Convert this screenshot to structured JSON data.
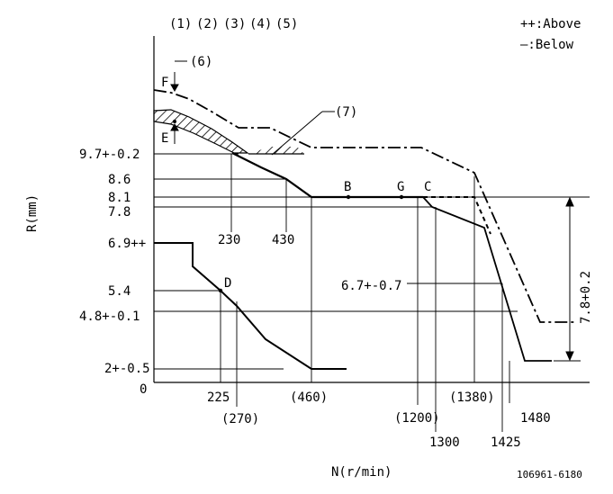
{
  "header": {
    "column_markers": [
      "(1)",
      "(2)",
      "(3)",
      "(4)",
      "(5)"
    ],
    "legend_above": "++:Above",
    "legend_below": "—:Below"
  },
  "axis": {
    "y_title": "R(mm)",
    "x_title": "N(r/min)",
    "origin": "0"
  },
  "y_labels": {
    "y97": "9.7+-0.2",
    "y86": "8.6",
    "y81": "8.1",
    "y78": "7.8",
    "y69": "6.9++",
    "y54": "5.4",
    "y48": "4.8+-0.1",
    "y2": "2+-0.5"
  },
  "x_labels": {
    "x230": "230",
    "x430": "430",
    "x225": "225",
    "x270": "(270)",
    "x460": "(460)",
    "x1200": "(1200)",
    "x1300": "1300",
    "x1380": "(1380)",
    "x1425": "1425",
    "x1480": "1480"
  },
  "annotations": {
    "f": "F",
    "e": "E",
    "note6": "(6)",
    "note7": "(7)",
    "b": "B",
    "g": "G",
    "c": "C",
    "d": "D",
    "mid_label": "6.7+-0.7",
    "right_dim": "7.8+0.2"
  },
  "footer": {
    "code": "106961-6180"
  }
}
